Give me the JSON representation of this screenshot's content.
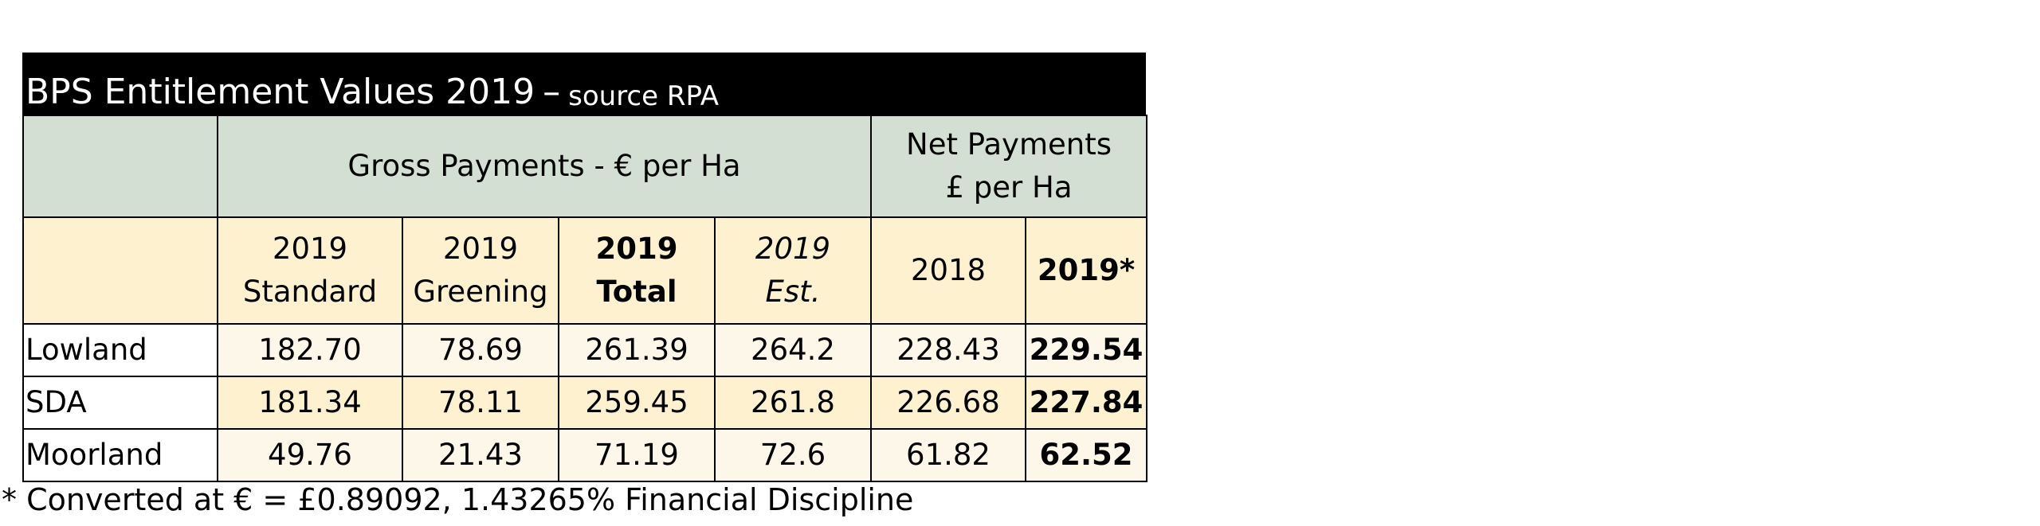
{
  "title": {
    "main": "BPS Entitlement Values 2019",
    "separator": "–",
    "source": "source RPA"
  },
  "headers": {
    "gross_group": "Gross Payments - € per Ha",
    "net_group_line1": "Net Payments",
    "net_group_line2": "£ per Ha",
    "columns": [
      {
        "line1": "2019",
        "line2": "Standard"
      },
      {
        "line1": "2019",
        "line2": "Greening"
      },
      {
        "line1": "2019",
        "line2": "Total"
      },
      {
        "line1": "2019",
        "line2": "Est."
      },
      {
        "line1": "2018"
      },
      {
        "line1": "2019*"
      }
    ]
  },
  "rows": [
    {
      "label": "Lowland",
      "values": [
        "182.70",
        "78.69",
        "261.39",
        "264.2",
        "228.43",
        "229.54"
      ]
    },
    {
      "label": "SDA",
      "values": [
        "181.34",
        "78.11",
        "259.45",
        "261.8",
        "226.68",
        "227.84"
      ]
    },
    {
      "label": "Moorland",
      "values": [
        "49.76",
        "21.43",
        "71.19",
        "72.6",
        "61.82",
        "62.52"
      ]
    }
  ],
  "footnote": "* Converted at € = £0.89092, 1.43265% Financial Discipline",
  "colors": {
    "title_bg": "#000000",
    "title_fg": "#ffffff",
    "header_green": "#d3dfd3",
    "header_cream": "#fdf1d0",
    "row_light": "#fdf7ea",
    "row_cream": "#fdf1d0"
  }
}
